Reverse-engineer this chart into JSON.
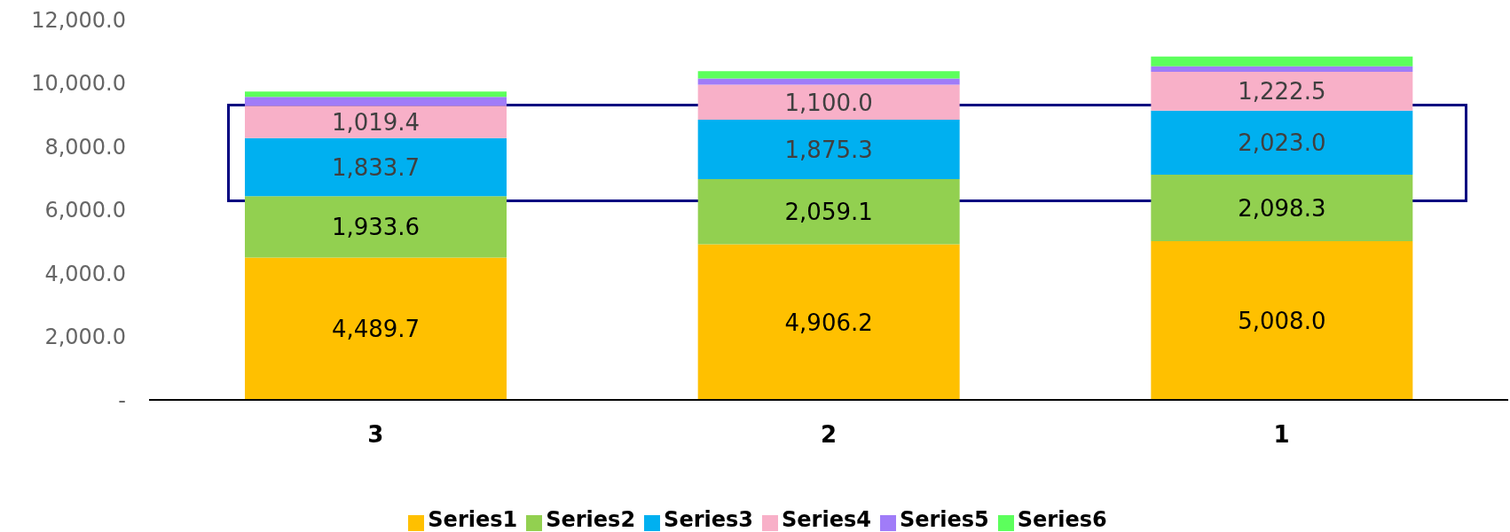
{
  "chart_data": {
    "type": "bar",
    "stacked": true,
    "categories": [
      "3",
      "2",
      "1"
    ],
    "series": [
      {
        "name": "Series1",
        "color": "#ffc000",
        "values": [
          4489.7,
          4906.2,
          5008.0
        ],
        "value_labels": [
          "4,489.7",
          "4,906.2",
          "5,008.0"
        ]
      },
      {
        "name": "Series2",
        "color": "#92d050",
        "values": [
          1933.6,
          2059.1,
          2098.3
        ],
        "value_labels": [
          "1,933.6",
          "2,059.1",
          "2,098.3"
        ]
      },
      {
        "name": "Series3",
        "color": "#00b0f0",
        "values": [
          1833.7,
          1875.3,
          2023.0
        ],
        "value_labels": [
          "1,833.7",
          "1,875.3",
          "2,023.0"
        ]
      },
      {
        "name": "Series4",
        "color": "#f8b0c8",
        "values": [
          1019.4,
          1100.0,
          1222.5
        ],
        "value_labels": [
          "1,019.4",
          "1,100.0",
          "1,222.5"
        ]
      },
      {
        "name": "Series5",
        "color": "#a07cf8",
        "values": [
          280,
          200,
          170
        ]
      },
      {
        "name": "Series6",
        "color": "#5cff5c",
        "values": [
          170,
          230,
          310
        ]
      }
    ],
    "ylim": [
      0,
      12000
    ],
    "yticks": [
      {
        "value": 0,
        "label": "-"
      },
      {
        "value": 2000,
        "label": "2,000.0"
      },
      {
        "value": 4000,
        "label": "4,000.0"
      },
      {
        "value": 6000,
        "label": "6,000.0"
      },
      {
        "value": 8000,
        "label": "8,000.0"
      },
      {
        "value": 10000,
        "label": "10,000.0"
      },
      {
        "value": 12000,
        "label": "12,000.0"
      }
    ],
    "grid": false,
    "legend": "bottom"
  }
}
